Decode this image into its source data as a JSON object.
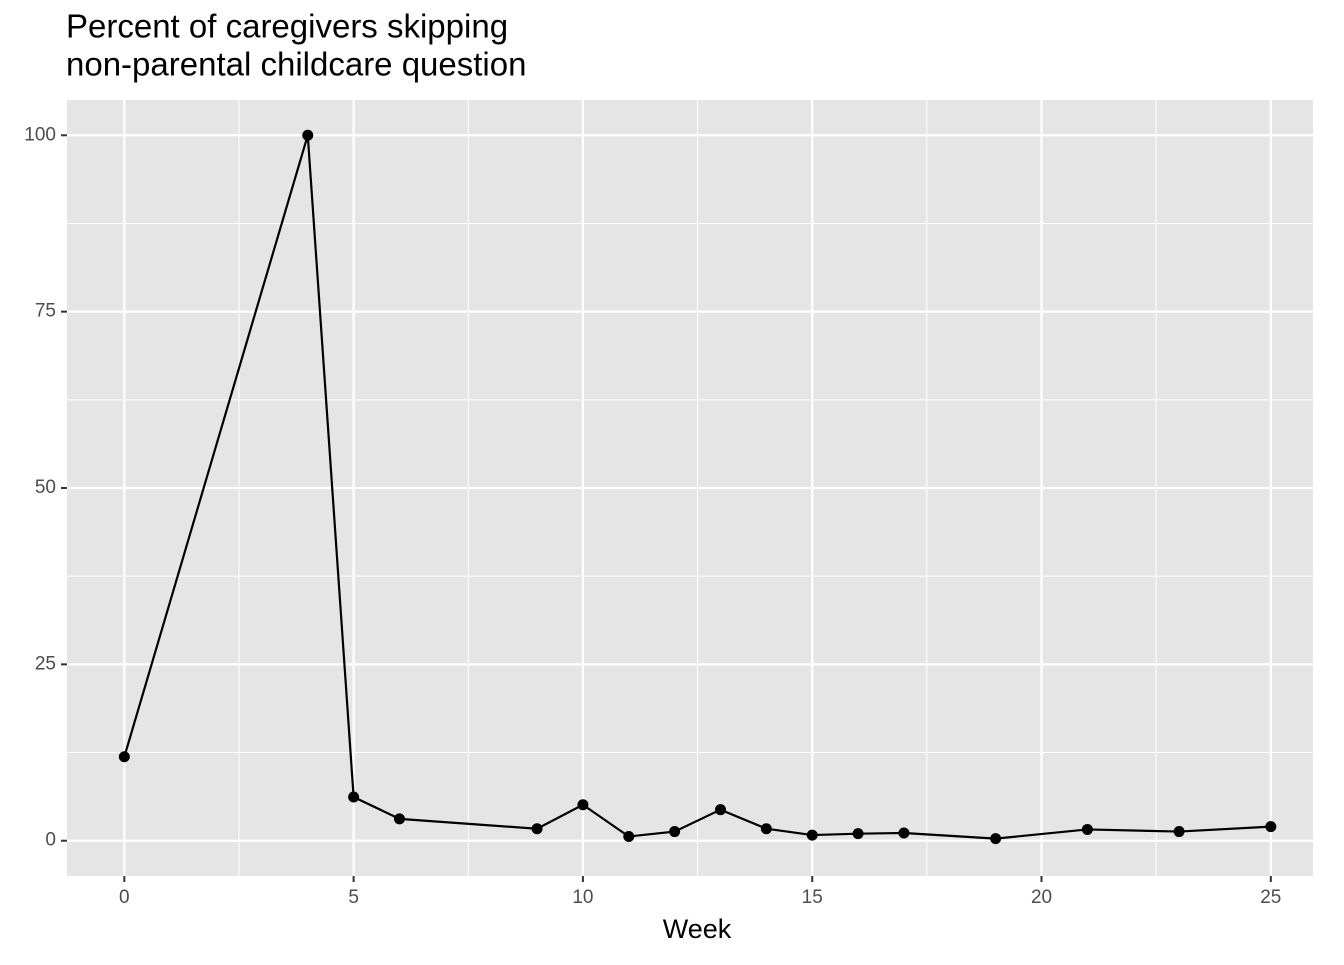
{
  "chart_data": {
    "type": "line",
    "title": [
      "Percent of caregivers skipping",
      "non-parental childcare question"
    ],
    "x_label": "Week",
    "x": [
      0,
      4,
      5,
      6,
      9,
      10,
      11,
      12,
      13,
      14,
      15,
      16,
      17,
      19,
      21,
      23,
      25
    ],
    "series": [
      {
        "color": "#000000",
        "values": [
          11.9,
          100,
          6.2,
          3.1,
          1.7,
          5.1,
          0.6,
          1.3,
          4.4,
          1.7,
          0.8,
          1.0,
          1.1,
          0.3,
          1.6,
          1.3,
          2.0
        ]
      }
    ],
    "xlim": [
      -1.25,
      25.92
    ],
    "ylim": [
      -5,
      105
    ],
    "xticks": [
      0,
      5,
      10,
      15,
      20,
      25
    ],
    "yticks": [
      0,
      25,
      50,
      75,
      100
    ],
    "x_minor_grid": [
      2.5,
      7.5,
      12.5,
      17.5,
      22.5
    ],
    "y_minor_grid": [
      12.5,
      37.5,
      62.5,
      87.5
    ],
    "grid": true,
    "panel_color": "#e5e5e5"
  }
}
